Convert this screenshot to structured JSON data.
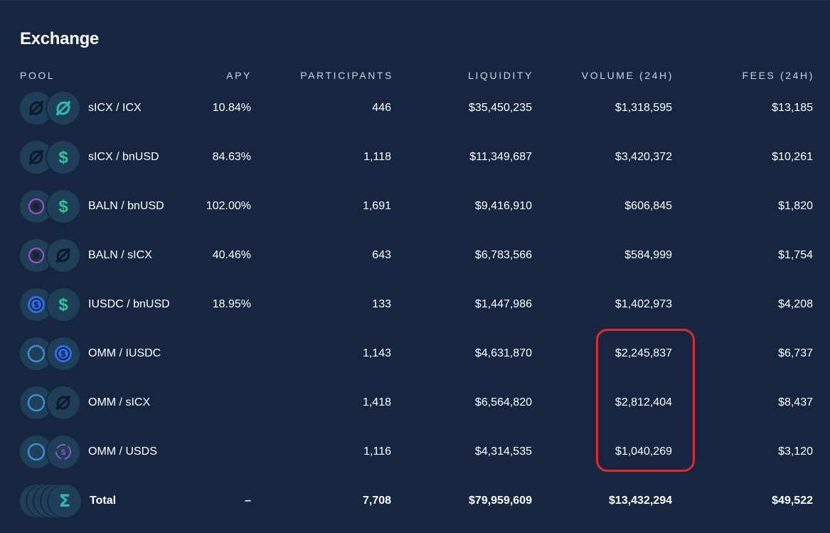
{
  "section_title": "Exchange",
  "columns": {
    "pool": "POOL",
    "apy": "APY",
    "participants": "PARTICIPANTS",
    "liquidity": "LIQUIDITY",
    "volume": "VOLUME (24H)",
    "fees": "FEES (24H)"
  },
  "colors": {
    "background": "#172640",
    "coin_bg": "#1f3e57",
    "icx_teal": "#2fb7b6",
    "bnusd_green": "#2fc59a",
    "baln_purple": "#8f55c9",
    "usdc_blue": "#2f6ee8",
    "omm_blue": "#3d8fd8",
    "highlight_red": "#e12a2a"
  },
  "rows": [
    {
      "pair": "sICX / ICX",
      "apy": "10.84%",
      "participants": "446",
      "liquidity": "$35,450,235",
      "volume": "$1,318,595",
      "fees": "$13,185",
      "icons": [
        "sicx-icon",
        "icx-icon"
      ]
    },
    {
      "pair": "sICX / bnUSD",
      "apy": "84.63%",
      "participants": "1,118",
      "liquidity": "$11,349,687",
      "volume": "$3,420,372",
      "fees": "$10,261",
      "icons": [
        "sicx-icon",
        "bnusd-icon"
      ]
    },
    {
      "pair": "BALN / bnUSD",
      "apy": "102.00%",
      "participants": "1,691",
      "liquidity": "$9,416,910",
      "volume": "$606,845",
      "fees": "$1,820",
      "icons": [
        "baln-icon",
        "bnusd-icon"
      ]
    },
    {
      "pair": "BALN / sICX",
      "apy": "40.46%",
      "participants": "643",
      "liquidity": "$6,783,566",
      "volume": "$584,999",
      "fees": "$1,754",
      "icons": [
        "baln-icon",
        "sicx-icon"
      ]
    },
    {
      "pair": "IUSDC / bnUSD",
      "apy": "18.95%",
      "participants": "133",
      "liquidity": "$1,447,986",
      "volume": "$1,402,973",
      "fees": "$4,208",
      "icons": [
        "iusdc-icon",
        "bnusd-icon"
      ]
    },
    {
      "pair": "OMM / IUSDC",
      "apy": "",
      "participants": "1,143",
      "liquidity": "$4,631,870",
      "volume": "$2,245,837",
      "fees": "$6,737",
      "icons": [
        "omm-icon",
        "iusdc-icon"
      ]
    },
    {
      "pair": "OMM / sICX",
      "apy": "",
      "participants": "1,418",
      "liquidity": "$6,564,820",
      "volume": "$2,812,404",
      "fees": "$8,437",
      "icons": [
        "omm-icon",
        "sicx-icon"
      ]
    },
    {
      "pair": "OMM / USDS",
      "apy": "",
      "participants": "1,116",
      "liquidity": "$4,314,535",
      "volume": "$1,040,269",
      "fees": "$3,120",
      "icons": [
        "omm-icon",
        "usds-icon"
      ]
    }
  ],
  "total": {
    "label": "Total",
    "apy": "–",
    "participants": "7,708",
    "liquidity": "$79,959,609",
    "volume": "$13,432,294",
    "fees": "$49,522",
    "icon": "sigma-icon"
  }
}
